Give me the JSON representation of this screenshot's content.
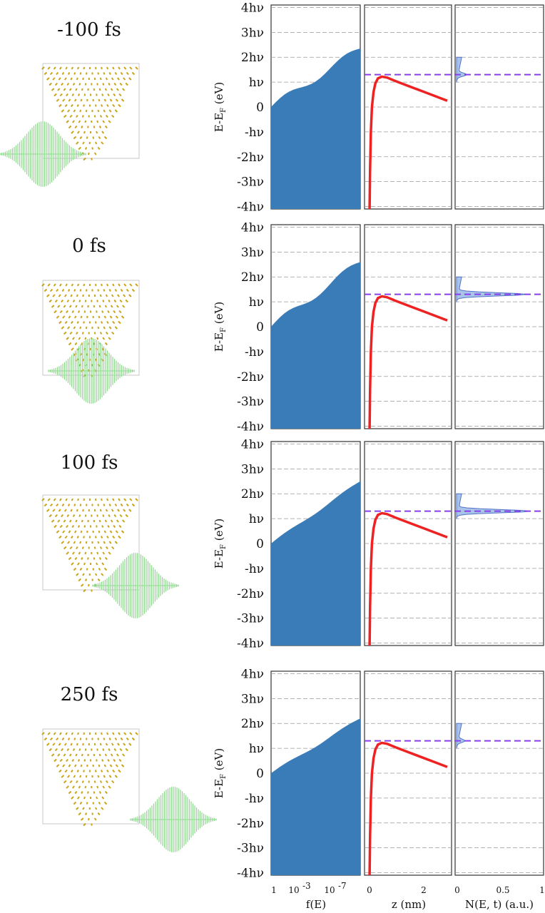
{
  "panels": [
    {
      "time_label": "-100 fs",
      "pulse_center": -100,
      "dos_peak": 0.1
    },
    {
      "time_label": "0 fs",
      "pulse_center": 0,
      "dos_peak": 0.8
    },
    {
      "time_label": "100 fs",
      "pulse_center": 100,
      "dos_peak": 0.85
    },
    {
      "time_label": "250 fs",
      "pulse_center": 250,
      "dos_peak": 0.08
    }
  ],
  "y_axis": {
    "label_main": "E-E",
    "label_sub": "F",
    "label_unit": " (eV)",
    "ticks": [
      "4hν",
      "3hν",
      "2hν",
      "hν",
      "0",
      "-hν",
      "-2hν",
      "-3hν",
      "-4hν"
    ],
    "tick_values": [
      4,
      3,
      2,
      1,
      0,
      -1,
      -2,
      -3,
      -4
    ],
    "range": [
      -4.1,
      4.1
    ]
  },
  "x_axes": {
    "col1": {
      "label": "f(E)",
      "tick_labels": [
        "1",
        "10",
        "-3",
        "10",
        "-7"
      ]
    },
    "col2": {
      "label": "z (nm)",
      "tick_labels": [
        "0",
        "2"
      ],
      "range": [
        0,
        3
      ]
    },
    "col3": {
      "label": "N(E, t) (a.u.)",
      "tick_labels": [
        "0",
        "0.5",
        "1"
      ],
      "range": [
        0,
        1
      ]
    }
  },
  "colors": {
    "fill_blue": "#3a7cb8",
    "barrier_red": "#ee2222",
    "dashed_purple": "#8a3cf0",
    "dos_fill": "#a9c4ea",
    "dos_line": "#5572c8",
    "grid": "#9a9a9a",
    "pulse_green": "#8fd88f",
    "tip_gold": "#c9a51a",
    "z_label_red": "#c0392b",
    "n_label_blue": "#4060c0"
  },
  "chart_data": [
    {
      "type": "area",
      "title": "-100 fs",
      "xlabel": "f(E)",
      "ylabel": "E-EF (eV)",
      "series": [
        {
          "values": [
            [
              -4,
              1
            ],
            [
              0,
              1
            ],
            [
              1,
              0.001
            ],
            [
              2,
              1e-09
            ]
          ]
        }
      ]
    },
    {
      "type": "line",
      "title": "-100 fs",
      "xlabel": "z (nm)",
      "ylabel": "E-EF (eV)",
      "series": [
        {
          "x": [
            0.03,
            0.1,
            0.2,
            0.4,
            0.6,
            1.0,
            1.5,
            2.0,
            2.5,
            3.0
          ],
          "values": [
            -4,
            -2,
            0,
            0.9,
            1.2,
            1.1,
            0.9,
            0.7,
            0.5,
            0.25
          ]
        }
      ]
    },
    {
      "type": "area",
      "title": "-100 fs",
      "xlabel": "N(E, t) (a.u.)",
      "ylabel": "E-EF (eV)",
      "series": [
        {
          "values": [
            0.1
          ]
        }
      ]
    }
  ],
  "dashed_level": 1.3
}
